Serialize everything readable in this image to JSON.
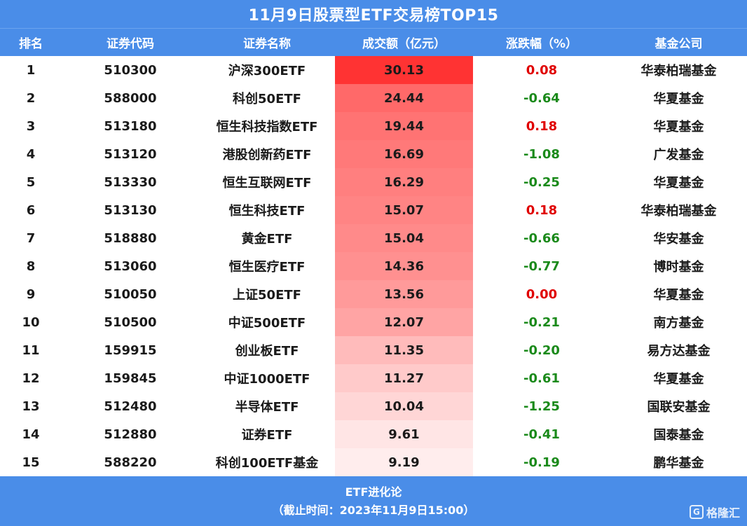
{
  "title": "11月9日股票型ETF交易榜TOP15",
  "headers": [
    "排名",
    "证券代码",
    "证券名称",
    "成交额（亿元）",
    "涨跌幅（%）",
    "基金公司"
  ],
  "rows": [
    {
      "rank": "1",
      "code": "510300",
      "name": "沪深300ETF",
      "volume": "30.13",
      "change": "0.08",
      "company": "华泰柏瑞基金",
      "heat": 1.0
    },
    {
      "rank": "2",
      "code": "588000",
      "name": "科创50ETF",
      "volume": "24.44",
      "change": "-0.64",
      "company": "华夏基金",
      "heat": 0.72
    },
    {
      "rank": "3",
      "code": "513180",
      "name": "恒生科技指数ETF",
      "volume": "19.44",
      "change": "0.18",
      "company": "华夏基金",
      "heat": 0.67
    },
    {
      "rank": "4",
      "code": "513120",
      "name": "港股创新药ETF",
      "volume": "16.69",
      "change": "-1.08",
      "company": "广发基金",
      "heat": 0.64
    },
    {
      "rank": "5",
      "code": "513330",
      "name": "恒生互联网ETF",
      "volume": "16.29",
      "change": "-0.25",
      "company": "华夏基金",
      "heat": 0.61
    },
    {
      "rank": "6",
      "code": "513130",
      "name": "恒生科技ETF",
      "volume": "15.07",
      "change": "0.18",
      "company": "华泰柏瑞基金",
      "heat": 0.58
    },
    {
      "rank": "7",
      "code": "518880",
      "name": "黄金ETF",
      "volume": "15.04",
      "change": "-0.66",
      "company": "华安基金",
      "heat": 0.55
    },
    {
      "rank": "8",
      "code": "513060",
      "name": "恒生医疗ETF",
      "volume": "14.36",
      "change": "-0.77",
      "company": "博时基金",
      "heat": 0.52
    },
    {
      "rank": "9",
      "code": "510050",
      "name": "上证50ETF",
      "volume": "13.56",
      "change": "0.00",
      "company": "华夏基金",
      "heat": 0.47
    },
    {
      "rank": "10",
      "code": "510500",
      "name": "中证500ETF",
      "volume": "12.07",
      "change": "-0.21",
      "company": "南方基金",
      "heat": 0.42
    },
    {
      "rank": "11",
      "code": "159915",
      "name": "创业板ETF",
      "volume": "11.35",
      "change": "-0.20",
      "company": "易方达基金",
      "heat": 0.3
    },
    {
      "rank": "12",
      "code": "159845",
      "name": "中证1000ETF",
      "volume": "11.27",
      "change": "-0.61",
      "company": "华夏基金",
      "heat": 0.22
    },
    {
      "rank": "13",
      "code": "512480",
      "name": "半导体ETF",
      "volume": "10.04",
      "change": "-1.25",
      "company": "国联安基金",
      "heat": 0.16
    },
    {
      "rank": "14",
      "code": "512880",
      "name": "证券ETF",
      "volume": "9.61",
      "change": "-0.41",
      "company": "国泰基金",
      "heat": 0.08
    },
    {
      "rank": "15",
      "code": "588220",
      "name": "科创100ETF基金",
      "volume": "9.19",
      "change": "-0.19",
      "company": "鹏华基金",
      "heat": 0.04
    }
  ],
  "footer": {
    "line1": "ETF进化论",
    "line2": "（截止时间：2023年11月9日15:00）"
  },
  "watermark": {
    "logo": "G",
    "text": "格隆汇"
  },
  "colors": {
    "header_bg": "#4a8de8",
    "heat_max": "#ff3333",
    "heat_min": "#fff5f5",
    "up": "#e00000",
    "down": "#1b8a1b"
  }
}
